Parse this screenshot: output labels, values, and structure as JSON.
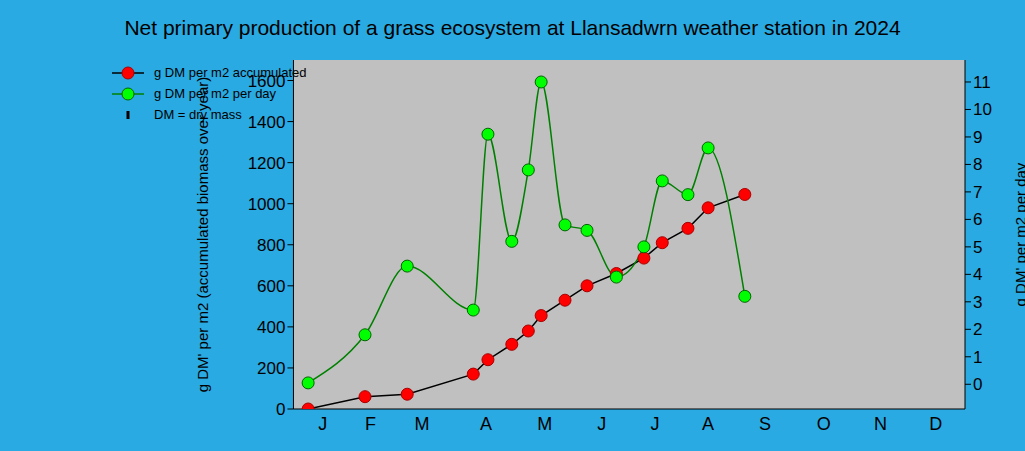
{
  "chart_data": {
    "type": "line",
    "title": "Net primary production of a grass ecosystem at Llansadwrn weather station in 2024",
    "x": [
      8,
      39,
      62,
      98,
      106,
      119,
      128,
      135,
      148,
      160,
      176,
      191,
      201,
      215,
      226,
      246
    ],
    "xlim": [
      0,
      366
    ],
    "xticks": [
      {
        "value": 16,
        "label": "J"
      },
      {
        "value": 42,
        "label": "F"
      },
      {
        "value": 70,
        "label": "M"
      },
      {
        "value": 105,
        "label": "A"
      },
      {
        "value": 137,
        "label": "M"
      },
      {
        "value": 168,
        "label": "J"
      },
      {
        "value": 197,
        "label": "J"
      },
      {
        "value": 226,
        "label": "A"
      },
      {
        "value": 257,
        "label": "S"
      },
      {
        "value": 289,
        "label": "O"
      },
      {
        "value": 320,
        "label": "N"
      },
      {
        "value": 350,
        "label": "D"
      }
    ],
    "y_label": "g DM' per m2 (accumulated biomass over year)",
    "y2_label": "g DM' per m2 per day",
    "ylim": [
      0,
      1700
    ],
    "yticks": [
      0,
      200,
      400,
      600,
      800,
      1000,
      1200,
      1400,
      1600
    ],
    "y2lim": [
      -0.9,
      11.8
    ],
    "y2ticks": [
      0,
      1,
      2,
      3,
      4,
      5,
      6,
      7,
      8,
      9,
      10,
      11
    ],
    "grid": false,
    "legend": "upper left",
    "annotations": [
      "DM = dry mass"
    ],
    "series": [
      {
        "name": "g DM per m2 accumulated",
        "color": "#ff0000",
        "marker": "circle",
        "line_style": "solid",
        "type": "line",
        "axis": "y",
        "values": [
          0,
          60,
          72,
          170,
          240,
          315,
          380,
          455,
          530,
          600,
          660,
          735,
          810,
          880,
          980,
          1045
        ]
      },
      {
        "name": "g DM per m2 per day",
        "color": "#00ff00",
        "marker": "circle",
        "line_style": "smooth",
        "type": "line",
        "axis": "y2",
        "values": [
          0.05,
          1.8,
          4.3,
          2.7,
          9.1,
          5.2,
          7.8,
          11.0,
          5.8,
          5.6,
          3.9,
          5.0,
          7.4,
          6.9,
          8.6,
          3.2
        ]
      }
    ]
  }
}
